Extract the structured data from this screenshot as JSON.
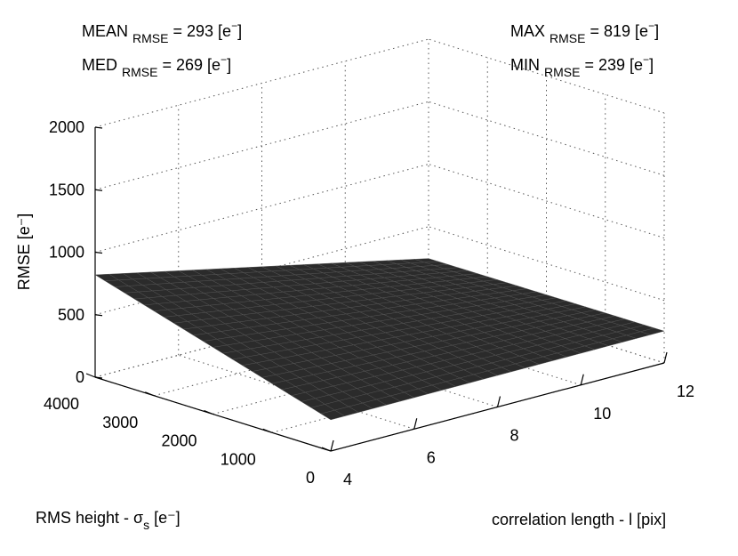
{
  "annotations": {
    "mean": {
      "prefix": "MEAN",
      "sub": "RMSE",
      "value": "= 293 [e",
      "sup": "−",
      "suffix": "]"
    },
    "med": {
      "prefix": "MED",
      "sub": "RMSE",
      "value": "= 269 [e",
      "sup": "−",
      "suffix": "]"
    },
    "max": {
      "prefix": "MAX",
      "sub": "RMSE",
      "value": "= 819 [e",
      "sup": "−",
      "suffix": "]"
    },
    "min": {
      "prefix": "MIN",
      "sub": "RMSE",
      "value": "= 239 [e",
      "sup": "−",
      "suffix": "]"
    }
  },
  "chart_data": {
    "type": "surface",
    "title": "",
    "zlabel": "RMSE [e⁻]",
    "xlabel": "correlation length - l [pix]",
    "ylabel": "RMS height - σs [e⁻]",
    "xlim": [
      4,
      12
    ],
    "ylim": [
      0,
      4000
    ],
    "zlim": [
      0,
      2000
    ],
    "x_ticks": [
      "4",
      "6",
      "8",
      "10",
      "12"
    ],
    "y_ticks": [
      "0",
      "1000",
      "2000",
      "3000",
      "4000"
    ],
    "z_ticks": [
      "0",
      "500",
      "1000",
      "1500",
      "2000"
    ],
    "grid": true,
    "surface_color": "#2b2b2b",
    "surface_edge_color": "#555555",
    "summary": {
      "mean": 293,
      "median": 269,
      "max": 819,
      "min": 239
    },
    "surface_corners": [
      {
        "x": 4,
        "y": 0,
        "z": 250
      },
      {
        "x": 12,
        "y": 0,
        "z": 255
      },
      {
        "x": 4,
        "y": 4000,
        "z": 819
      },
      {
        "x": 12,
        "y": 4000,
        "z": 245
      }
    ]
  }
}
